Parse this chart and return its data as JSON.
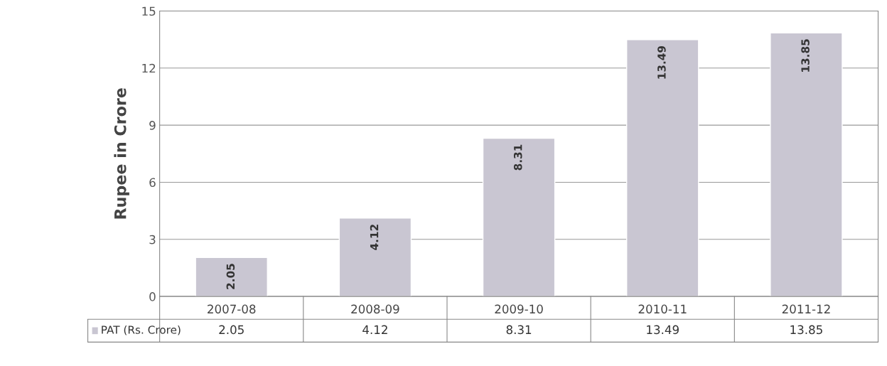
{
  "chart_data": {
    "type": "bar",
    "ylabel": "Rupee in Crore",
    "categories": [
      "2007-08",
      "2008-09",
      "2009-10",
      "2010-11",
      "2011-12"
    ],
    "series": [
      {
        "name": "PAT (Rs. Crore)",
        "color": "#c9c6d2",
        "values": [
          2.05,
          4.12,
          8.31,
          13.49,
          13.85
        ]
      }
    ],
    "annotations": [
      "2.05",
      "4.12",
      "8.31",
      "13.49",
      "13.85"
    ],
    "ylim": [
      0,
      15
    ],
    "yticks": [
      0,
      3,
      6,
      9,
      12,
      15
    ],
    "grid": "y",
    "data_labels": true,
    "legend": "bottom"
  }
}
